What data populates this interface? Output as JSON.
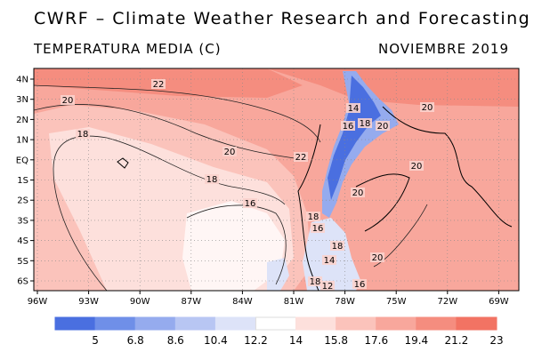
{
  "header": {
    "title": "CWRF – Climate Weather Research and Forecasting",
    "variable": "TEMPERATURA MEDIA (C)",
    "period": "NOVIEMBRE 2019"
  },
  "map": {
    "lon_ticks": [
      "96W",
      "93W",
      "90W",
      "87W",
      "84W",
      "81W",
      "78W",
      "75W",
      "72W",
      "69W"
    ],
    "lat_ticks": [
      "4N",
      "3N",
      "2N",
      "1N",
      "EQ",
      "1S",
      "2S",
      "3S",
      "4S",
      "5S",
      "6S"
    ],
    "contour_labels": [
      "22",
      "20",
      "18",
      "20",
      "18",
      "16",
      "22",
      "20",
      "14",
      "16",
      "18",
      "20",
      "20",
      "20",
      "18",
      "16",
      "14",
      "18",
      "20",
      "18",
      "16",
      "12"
    ]
  },
  "legend": {
    "colors": [
      "#4a6fe0",
      "#6f8fe8",
      "#95abee",
      "#b8c6f3",
      "#dde3f8",
      "#ffffff",
      "#fde0dc",
      "#fbc3bb",
      "#f8a79c",
      "#f58d7f",
      "#f27363"
    ],
    "labels": [
      "5",
      "6.8",
      "8.6",
      "10.4",
      "12.2",
      "14",
      "15.8",
      "17.6",
      "19.4",
      "21.2",
      "23"
    ]
  }
}
